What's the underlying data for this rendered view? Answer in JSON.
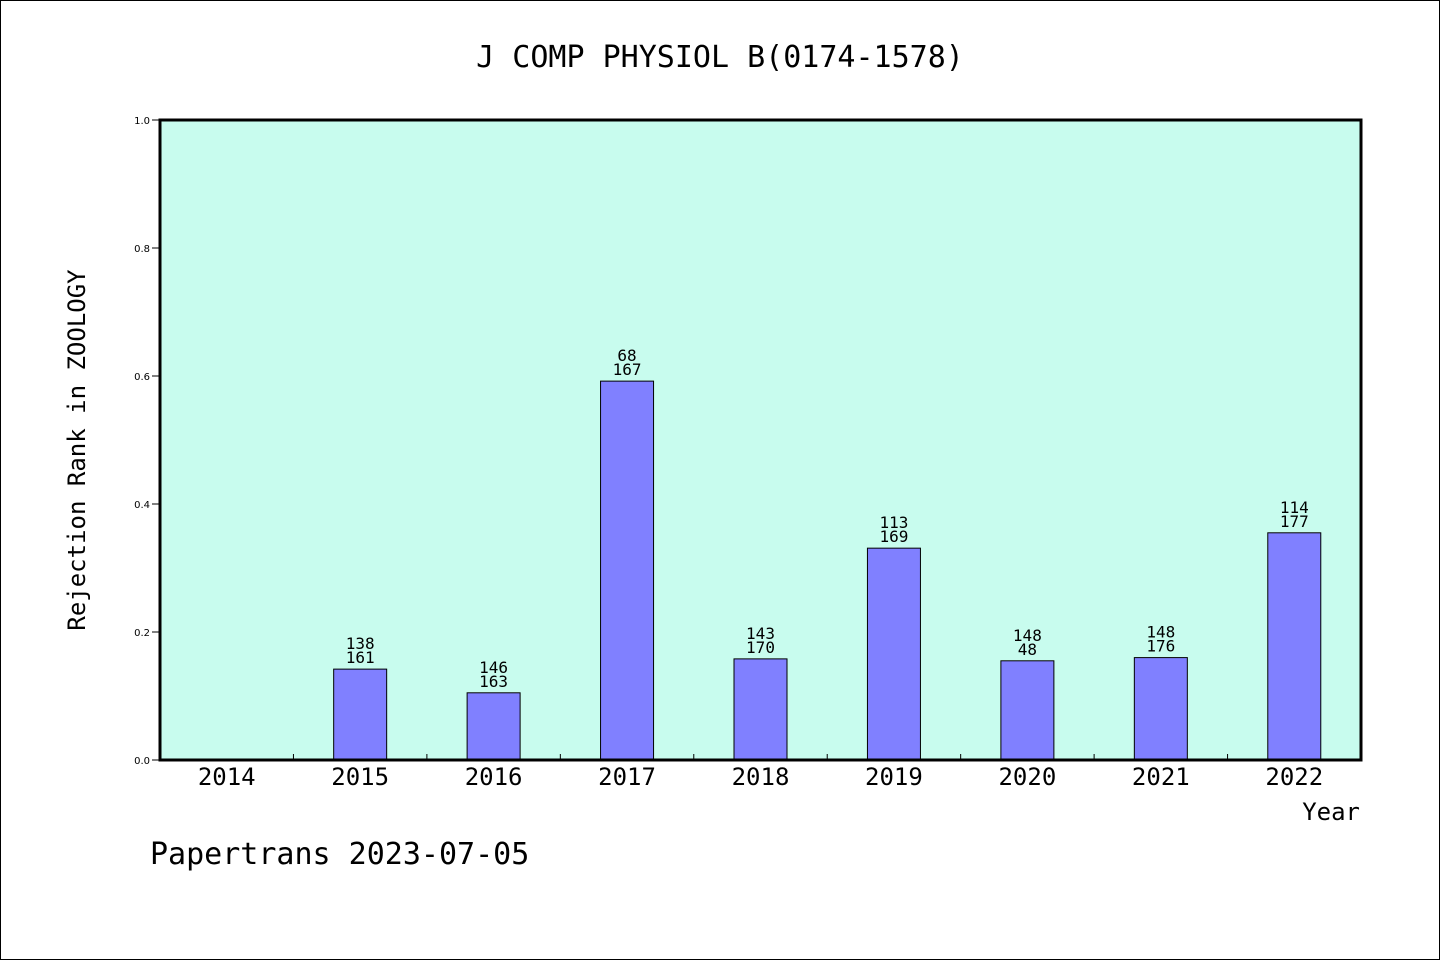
{
  "chart_data": {
    "type": "bar",
    "title": "J COMP PHYSIOL B(0174-1578)",
    "xlabel": "Year",
    "ylabel": "Rejection Rank in ZOOLOGY",
    "ylim": [
      0,
      1.0
    ],
    "yticks": [
      "0.0",
      "0.2",
      "0.4",
      "0.6",
      "0.8",
      "1.0"
    ],
    "categories": [
      "2014",
      "2015",
      "2016",
      "2017",
      "2018",
      "2019",
      "2020",
      "2021",
      "2022"
    ],
    "values": [
      null,
      0.142,
      0.105,
      0.592,
      0.158,
      0.331,
      0.155,
      0.16,
      0.355
    ],
    "labels_top": [
      "",
      "138",
      "146",
      "68",
      "143",
      "113",
      "148",
      "148",
      "114"
    ],
    "labels_bottom": [
      "",
      "161",
      "163",
      "167",
      "170",
      "169",
      "48",
      "176",
      "177"
    ],
    "grid": false,
    "colors": {
      "plot_bg": "#c8fcee",
      "bar": "#8080ff",
      "bar_edge": "#000000"
    }
  },
  "footer": {
    "text": "Papertrans 2023-07-05"
  }
}
